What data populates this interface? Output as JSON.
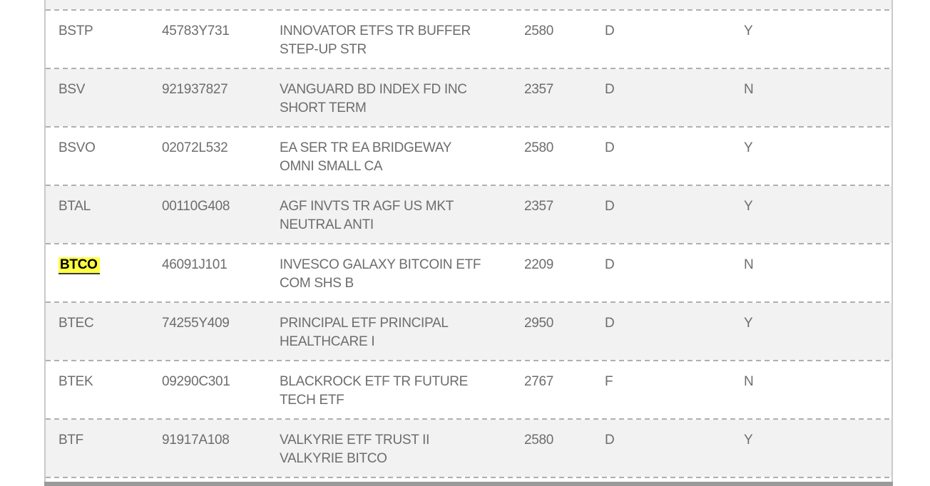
{
  "search": {
    "highlighted_term": "BTCO",
    "highlight_color": "#ffff44"
  },
  "colors": {
    "row_alt_background": "#f2f2f2",
    "row_background": "#ffffff",
    "divider": "#b0b0b0",
    "side_border": "#c9c9c9",
    "text": "#6d6d6d",
    "scrollbar": "#9a9a9a"
  },
  "rows": [
    {
      "symbol": "BSTP",
      "cusip": "45783Y731",
      "description": "INNOVATOR ETFS TR BUFFER STEP-UP STR",
      "code": "2580",
      "type": "D",
      "flag": "Y",
      "highlighted": false
    },
    {
      "symbol": "BSV",
      "cusip": "921937827",
      "description": "VANGUARD BD INDEX FD INC SHORT TERM",
      "code": "2357",
      "type": "D",
      "flag": "N",
      "highlighted": false
    },
    {
      "symbol": "BSVO",
      "cusip": "02072L532",
      "description": "EA SER TR EA BRIDGEWAY OMNI SMALL CA",
      "code": "2580",
      "type": "D",
      "flag": "Y",
      "highlighted": false
    },
    {
      "symbol": "BTAL",
      "cusip": "00110G408",
      "description": "AGF INVTS TR AGF US MKT NEUTRAL ANTI",
      "code": "2357",
      "type": "D",
      "flag": "Y",
      "highlighted": false
    },
    {
      "symbol": "BTCO",
      "cusip": "46091J101",
      "description": "INVESCO GALAXY BITCOIN ETF COM SHS B",
      "code": "2209",
      "type": "D",
      "flag": "N",
      "highlighted": true
    },
    {
      "symbol": "BTEC",
      "cusip": "74255Y409",
      "description": "PRINCIPAL ETF PRINCIPAL HEALTHCARE I",
      "code": "2950",
      "type": "D",
      "flag": "Y",
      "highlighted": false
    },
    {
      "symbol": "BTEK",
      "cusip": "09290C301",
      "description": "BLACKROCK ETF TR FUTURE TECH ETF",
      "code": "2767",
      "type": "F",
      "flag": "N",
      "highlighted": false
    },
    {
      "symbol": "BTF",
      "cusip": "91917A108",
      "description": "VALKYRIE ETF TRUST II VALKYRIE BITCO",
      "code": "2580",
      "type": "D",
      "flag": "Y",
      "highlighted": false
    }
  ]
}
